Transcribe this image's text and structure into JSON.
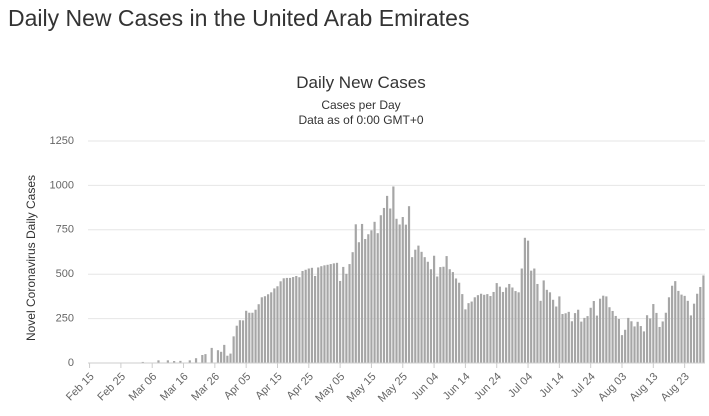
{
  "page_title": "Daily New Cases in the United Arab Emirates",
  "chart_data": {
    "type": "bar",
    "title": "Daily New Cases",
    "subtitle": "Cases per Day",
    "note": "Data as of 0:00 GMT+0",
    "y_label": "Novel Coronavirus Daily Cases",
    "color": "#a6a6a6",
    "grid": true,
    "ylim": [
      0,
      1250
    ],
    "yticks": [
      0,
      250,
      500,
      750,
      1000,
      1250
    ],
    "categories": [
      "Feb 15",
      null,
      null,
      null,
      null,
      null,
      null,
      null,
      null,
      null,
      "Feb 25",
      null,
      null,
      null,
      null,
      null,
      null,
      null,
      null,
      null,
      "Mar 06",
      null,
      null,
      null,
      null,
      null,
      null,
      null,
      null,
      null,
      "Mar 16",
      null,
      null,
      null,
      null,
      null,
      null,
      null,
      null,
      null,
      "Mar 26",
      null,
      null,
      null,
      null,
      null,
      null,
      null,
      null,
      null,
      "Apr 05",
      null,
      null,
      null,
      null,
      null,
      null,
      null,
      null,
      null,
      "Apr 15",
      null,
      null,
      null,
      null,
      null,
      null,
      null,
      null,
      null,
      "Apr 25",
      null,
      null,
      null,
      null,
      null,
      null,
      null,
      null,
      null,
      "May 05",
      null,
      null,
      null,
      null,
      null,
      null,
      null,
      null,
      null,
      "May 15",
      null,
      null,
      null,
      null,
      null,
      null,
      null,
      null,
      null,
      "May 25",
      null,
      null,
      null,
      null,
      null,
      null,
      null,
      null,
      null,
      "Jun 04",
      null,
      null,
      null,
      null,
      null,
      null,
      null,
      null,
      null,
      "Jun 14",
      null,
      null,
      null,
      null,
      null,
      null,
      null,
      null,
      null,
      "Jun 24",
      null,
      null,
      null,
      null,
      null,
      null,
      null,
      null,
      null,
      "Jul 04",
      null,
      null,
      null,
      null,
      null,
      null,
      null,
      null,
      null,
      "Jul 14",
      null,
      null,
      null,
      null,
      null,
      null,
      null,
      null,
      null,
      "Jul 24",
      null,
      null,
      null,
      null,
      null,
      null,
      null,
      null,
      null,
      "Aug 03",
      null,
      null,
      null,
      null,
      null,
      null,
      null,
      null,
      null,
      "Aug 13",
      null,
      null,
      null,
      null,
      null,
      null,
      null,
      null,
      null,
      "Aug 23",
      null,
      null,
      null,
      null,
      null,
      null
    ],
    "values": [
      0,
      0,
      0,
      0,
      0,
      0,
      0,
      0,
      0,
      0,
      0,
      0,
      0,
      0,
      0,
      0,
      0,
      6,
      0,
      0,
      0,
      0,
      15,
      0,
      0,
      15,
      0,
      11,
      0,
      12,
      0,
      0,
      15,
      0,
      27,
      0,
      45,
      50,
      0,
      85,
      0,
      72,
      63,
      102,
      41,
      53,
      150,
      210,
      241,
      240,
      294,
      283,
      283,
      300,
      331,
      370,
      376,
      387,
      398,
      420,
      432,
      460,
      477,
      479,
      479,
      484,
      490,
      483,
      518,
      525,
      532,
      536,
      490,
      538,
      545,
      550,
      553,
      557,
      561,
      564,
      462,
      541,
      502,
      557,
      624,
      781,
      680,
      783,
      698,
      725,
      747,
      795,
      731,
      832,
      873,
      941,
      870,
      994,
      812,
      780,
      822,
      779,
      883,
      596,
      638,
      661,
      626,
      596,
      570,
      528,
      604,
      487,
      540,
      542,
      602,
      528,
      512,
      476,
      452,
      388,
      302,
      337,
      346,
      370,
      382,
      390,
      384,
      388,
      377,
      400,
      450,
      430,
      400,
      425,
      445,
      425,
      405,
      398,
      532,
      705,
      689,
      520,
      532,
      445,
      350,
      465,
      412,
      398,
      356,
      318,
      375,
      276,
      280,
      288,
      235,
      281,
      300,
      233,
      254,
      264,
      311,
      349,
      267,
      362,
      379,
      375,
      314,
      293,
      265,
      248,
      157,
      187,
      254,
      235,
      206,
      232,
      208,
      178,
      269,
      251,
      332,
      282,
      203,
      234,
      283,
      370,
      435,
      461,
      406,
      385,
      378,
      350,
      268,
      334,
      390,
      428,
      493
    ]
  }
}
